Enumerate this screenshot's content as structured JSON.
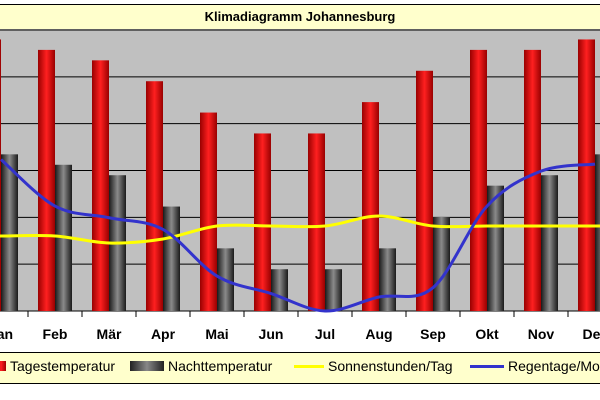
{
  "chart_data": {
    "type": "bar",
    "title": "Klimadiagramm Johannesburg",
    "categories": [
      "Jan",
      "Feb",
      "Mär",
      "Apr",
      "Mai",
      "Jun",
      "Jul",
      "Aug",
      "Sep",
      "Okt",
      "Nov",
      "Dez"
    ],
    "ylim": [
      0,
      27
    ],
    "grid": true,
    "legend_placement": "bottom",
    "series": [
      {
        "name": "Tagestemperatur",
        "kind": "bar",
        "color": "#ff0000",
        "values": [
          26,
          25,
          24,
          22,
          19,
          17,
          17,
          20,
          23,
          25,
          25,
          26
        ]
      },
      {
        "name": "Nachttemperatur",
        "kind": "bar",
        "color": "#555555",
        "values": [
          15,
          14,
          13,
          10,
          6,
          4,
          4,
          6,
          9,
          12,
          13,
          15
        ]
      },
      {
        "name": "Sonnenstunden/Tag",
        "kind": "line",
        "color": "#ffff00",
        "values": [
          8,
          8,
          7.3,
          7.7,
          9,
          9,
          9,
          10,
          9,
          9,
          9,
          9
        ]
      },
      {
        "name": "Regentage/Monat",
        "kind": "line",
        "color": "#3333cc",
        "values": [
          13,
          9,
          8,
          7,
          3,
          1.5,
          0,
          1.2,
          2,
          9,
          12,
          12.6
        ]
      }
    ]
  },
  "colors": {
    "plot_background": "#c0c0c0",
    "frame_background": "#ffffcc",
    "grid": "#000000"
  }
}
